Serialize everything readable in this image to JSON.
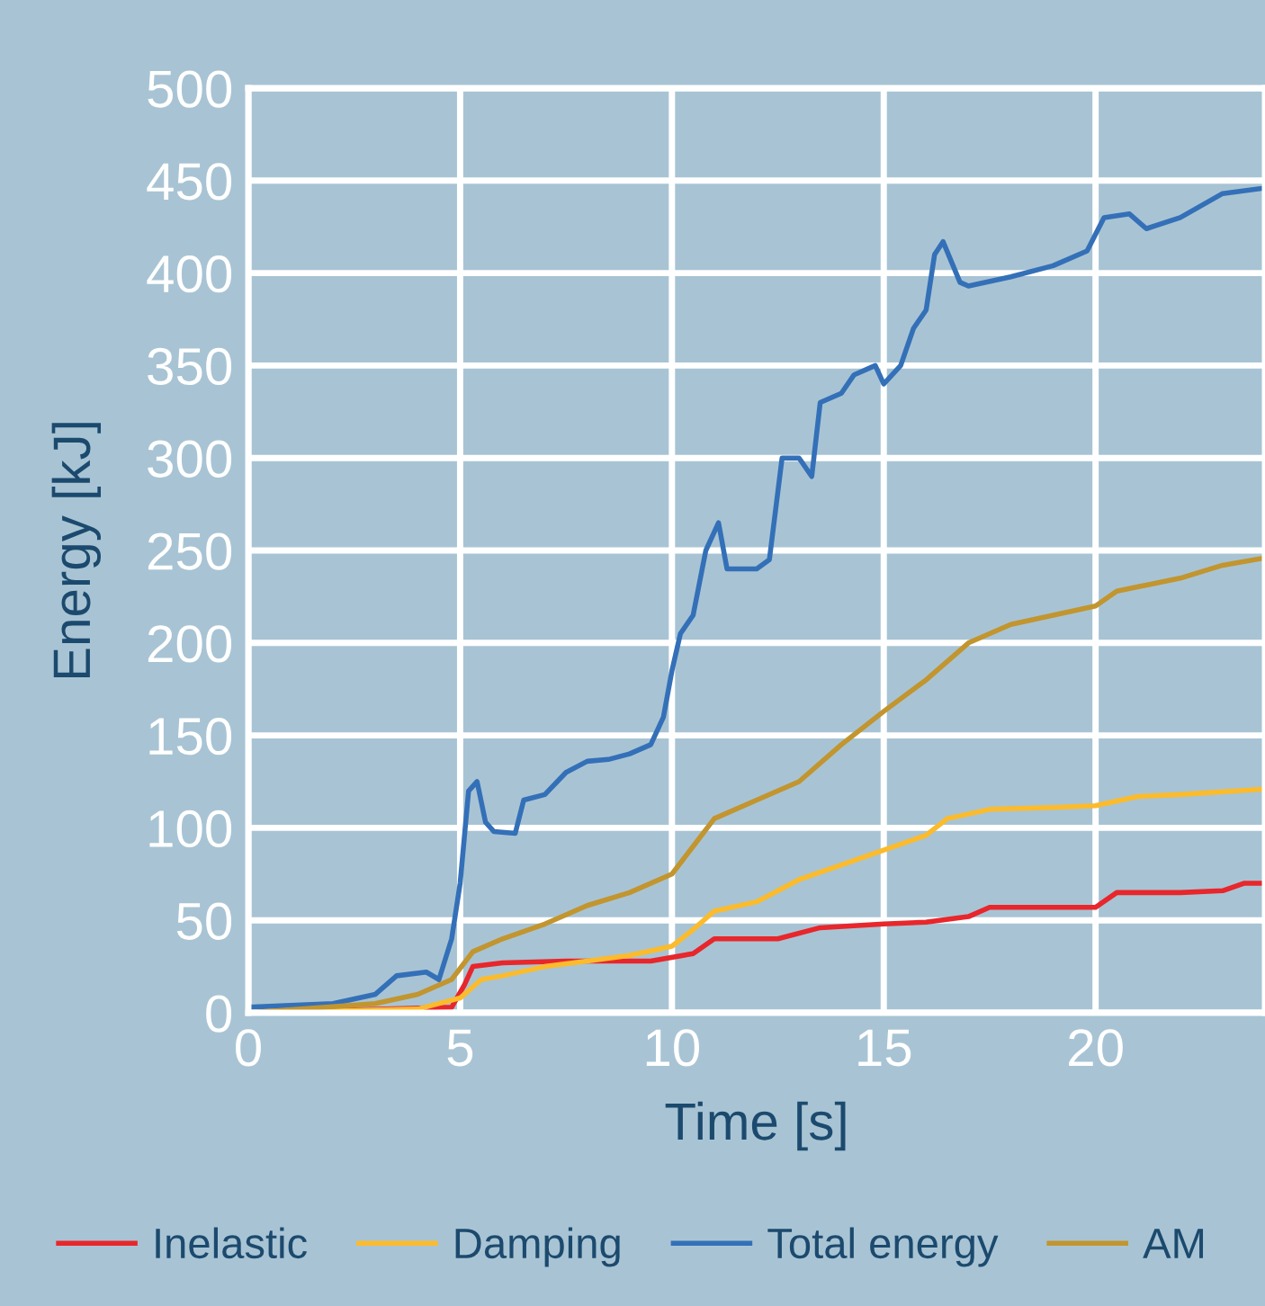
{
  "chart_data": {
    "type": "line",
    "xlabel": "Time [s]",
    "ylabel": "Energy [kJ]",
    "xlim": [
      0,
      24
    ],
    "ylim": [
      0,
      500
    ],
    "xticks": [
      0,
      5,
      10,
      15,
      20
    ],
    "yticks": [
      0,
      50,
      100,
      150,
      200,
      250,
      300,
      350,
      400,
      450,
      500
    ],
    "grid": true,
    "legend": "bottom",
    "marker": "none",
    "line_style": "solid",
    "series": [
      {
        "name": "Inelastic",
        "color": "#e8262b",
        "x": [
          0,
          4.8,
          5.1,
          5.3,
          6,
          7.5,
          9.5,
          10.5,
          11,
          12.5,
          13.5,
          15,
          16,
          17,
          17.5,
          20,
          20.5,
          22,
          23,
          23.5,
          24
        ],
        "values": [
          0,
          3,
          15,
          25,
          27,
          28,
          28,
          32,
          40,
          40,
          46,
          48,
          49,
          52,
          57,
          57,
          65,
          65,
          66,
          70,
          70
        ]
      },
      {
        "name": "Damping",
        "color": "#fbbb2c",
        "x": [
          0,
          4,
          5,
          5.5,
          6,
          7,
          8,
          9,
          10,
          10.5,
          11,
          12,
          13,
          14,
          15,
          16,
          16.5,
          17.5,
          19,
          20,
          21,
          22,
          24
        ],
        "values": [
          0,
          2,
          8,
          18,
          20,
          25,
          28,
          31,
          36,
          45,
          55,
          60,
          72,
          80,
          88,
          96,
          105,
          110,
          111,
          112,
          117,
          118,
          121
        ]
      },
      {
        "name": "Total energy",
        "color": "#3470b8",
        "x": [
          0,
          2,
          3,
          3.5,
          4.2,
          4.5,
          4.8,
          5.0,
          5.2,
          5.4,
          5.6,
          5.8,
          6.3,
          6.5,
          7,
          7.5,
          8,
          8.5,
          9,
          9.5,
          9.8,
          10,
          10.2,
          10.5,
          10.8,
          11.1,
          11.3,
          12,
          12.3,
          12.6,
          13,
          13.3,
          13.5,
          14,
          14.3,
          14.8,
          15,
          15.4,
          15.7,
          16,
          16.2,
          16.4,
          16.8,
          17,
          18,
          19,
          19.8,
          20.2,
          20.8,
          21.2,
          22,
          23,
          24
        ],
        "values": [
          3,
          5,
          10,
          20,
          22,
          18,
          40,
          70,
          120,
          125,
          103,
          98,
          97,
          115,
          118,
          130,
          136,
          137,
          140,
          145,
          160,
          185,
          205,
          215,
          250,
          265,
          240,
          240,
          245,
          300,
          300,
          290,
          330,
          335,
          345,
          350,
          340,
          350,
          370,
          380,
          410,
          417,
          395,
          393,
          398,
          404,
          412,
          430,
          432,
          424,
          430,
          443,
          446
        ]
      },
      {
        "name": "AM",
        "color": "#c2952f",
        "x": [
          0,
          3,
          4,
          4.8,
          5.3,
          6,
          7,
          8,
          9,
          10,
          10.5,
          11,
          12,
          13,
          14,
          15,
          16,
          17,
          18,
          19,
          20,
          20.5,
          22,
          23,
          24
        ],
        "values": [
          0,
          5,
          10,
          18,
          33,
          40,
          48,
          58,
          65,
          75,
          90,
          105,
          115,
          125,
          145,
          163,
          180,
          200,
          210,
          215,
          220,
          228,
          235,
          242,
          246
        ]
      }
    ]
  }
}
